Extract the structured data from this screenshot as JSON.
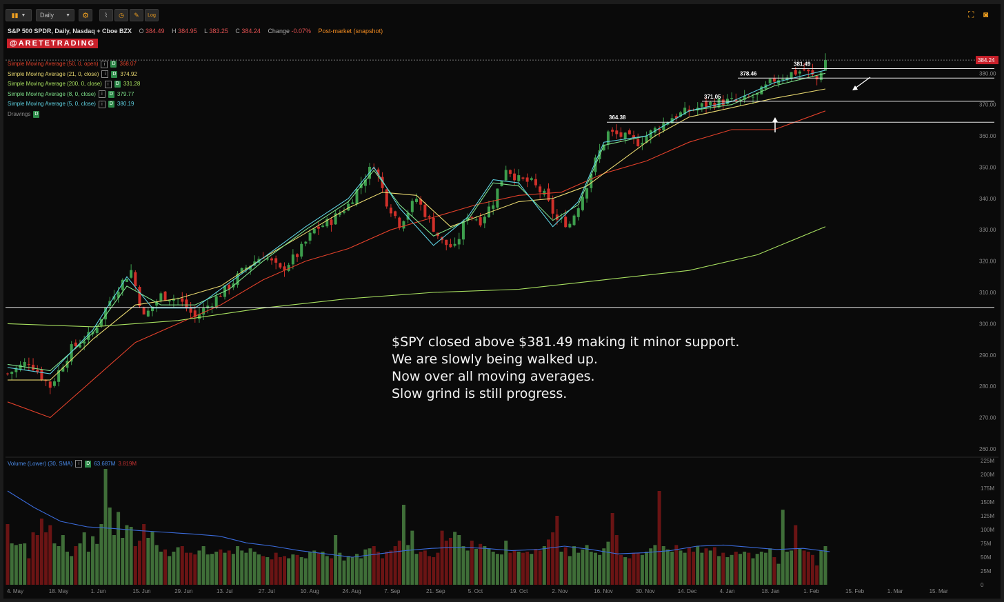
{
  "toolbar": {
    "chart_style_icon": "candlestick-icon",
    "interval_value": "Daily",
    "buttons": [
      "gear-icon",
      "compare-icon",
      "clock-icon",
      "drawing-icon",
      "log-scale-icon"
    ],
    "log_label": "Log",
    "right_icons": [
      "expand-icon",
      "camera-icon"
    ]
  },
  "header": {
    "symbol": "S&P 500 SPDR, Daily, Nasdaq + Cboe BZX",
    "open_label": "O",
    "open_value": "384.49",
    "high_label": "H",
    "high_value": "384.95",
    "low_label": "L",
    "low_value": "383.25",
    "close_label": "C",
    "close_value": "384.24",
    "change_label": "Change",
    "change_value": "-0.07%",
    "postmarket": "Post-market (snapshot)"
  },
  "brand": "@ARETETRADING",
  "studies": [
    {
      "label": "Simple Moving Average (50, 0, open)",
      "value": "368.07",
      "color": "#e0402a"
    },
    {
      "label": "Simple Moving Average (21, 0, close)",
      "value": "374.92",
      "color": "#e8d870"
    },
    {
      "label": "Simple Moving Average (200, 0, close)",
      "value": "331.28",
      "color": "#a8e060"
    },
    {
      "label": "Simple Moving Average (8, 0, close)",
      "value": "379.77",
      "color": "#7ee08a"
    },
    {
      "label": "Simple Moving Average (5, 0, close)",
      "value": "380.19",
      "color": "#5ed0e0"
    },
    {
      "label": "Drawings",
      "value": "",
      "color": "#888888"
    }
  ],
  "annotation_lines": [
    "$SPY closed above $381.49 making it minor support.",
    "We are slowly being walked up.",
    "Now over all moving averages.",
    "Slow grind is still progress."
  ],
  "level_labels": [
    "381.49",
    "378.46",
    "371.05",
    "364.38"
  ],
  "last_price_tag": "384.24",
  "volume_header": {
    "label": "Volume (Lower) (30, SMA)",
    "value1": "63.687M",
    "value2": "3.819M"
  },
  "chart_data": [
    {
      "type": "candlestick",
      "title": "S&P 500 SPDR, Daily, Nasdaq + Cboe BZX",
      "y_ticks": [
        "380.00",
        "370.00",
        "360.00",
        "350.00",
        "340.00",
        "330.00",
        "320.00",
        "310.00",
        "300.00",
        "290.00",
        "280.00",
        "270.00",
        "260.00"
      ],
      "ylim": [
        258,
        388
      ],
      "x_ticks": [
        "4. May",
        "18. May",
        "1. Jun",
        "15. Jun",
        "29. Jun",
        "13. Jul",
        "27. Jul",
        "10. Aug",
        "24. Aug",
        "7. Sep",
        "21. Sep",
        "5. Oct",
        "19. Oct",
        "2. Nov",
        "16. Nov",
        "30. Nov",
        "14. Dec",
        "4. Jan",
        "18. Jan",
        "1. Feb",
        "15. Feb",
        "1. Mar",
        "15. Mar"
      ],
      "close_path": [
        [
          0,
          284
        ],
        [
          5,
          288
        ],
        [
          10,
          280
        ],
        [
          15,
          292
        ],
        [
          20,
          297
        ],
        [
          25,
          310
        ],
        [
          29,
          317
        ],
        [
          32,
          302
        ],
        [
          36,
          309
        ],
        [
          40,
          308
        ],
        [
          44,
          302
        ],
        [
          48,
          307
        ],
        [
          52,
          312
        ],
        [
          56,
          318
        ],
        [
          60,
          322
        ],
        [
          64,
          317
        ],
        [
          68,
          322
        ],
        [
          72,
          330
        ],
        [
          76,
          333
        ],
        [
          80,
          338
        ],
        [
          83,
          345
        ],
        [
          86,
          351
        ],
        [
          89,
          339
        ],
        [
          92,
          332
        ],
        [
          96,
          340
        ],
        [
          99,
          333
        ],
        [
          102,
          326
        ],
        [
          105,
          324
        ],
        [
          108,
          335
        ],
        [
          111,
          333
        ],
        [
          114,
          339
        ],
        [
          117,
          350
        ],
        [
          120,
          346
        ],
        [
          123,
          345
        ],
        [
          126,
          341
        ],
        [
          129,
          333
        ],
        [
          132,
          332
        ],
        [
          135,
          341
        ],
        [
          138,
          352
        ],
        [
          141,
          361
        ],
        [
          144,
          360
        ],
        [
          148,
          358
        ],
        [
          152,
          362
        ],
        [
          156,
          366
        ],
        [
          160,
          368
        ],
        [
          164,
          370
        ],
        [
          168,
          371
        ],
        [
          172,
          371
        ],
        [
          176,
          373
        ],
        [
          180,
          378
        ],
        [
          184,
          380
        ],
        [
          187,
          381
        ],
        [
          190,
          378
        ],
        [
          192,
          384.24
        ]
      ],
      "sma_50": [
        [
          0,
          275
        ],
        [
          10,
          270
        ],
        [
          20,
          282
        ],
        [
          30,
          294
        ],
        [
          40,
          300
        ],
        [
          50,
          306
        ],
        [
          60,
          314
        ],
        [
          70,
          320
        ],
        [
          80,
          324
        ],
        [
          90,
          330
        ],
        [
          100,
          334
        ],
        [
          110,
          338
        ],
        [
          120,
          341
        ],
        [
          130,
          342
        ],
        [
          140,
          348
        ],
        [
          150,
          352
        ],
        [
          160,
          358
        ],
        [
          170,
          362
        ],
        [
          180,
          362
        ],
        [
          192,
          368
        ]
      ],
      "sma_21": [
        [
          0,
          282
        ],
        [
          10,
          282
        ],
        [
          20,
          295
        ],
        [
          30,
          306
        ],
        [
          40,
          308
        ],
        [
          50,
          312
        ],
        [
          60,
          321
        ],
        [
          70,
          329
        ],
        [
          80,
          337
        ],
        [
          88,
          342
        ],
        [
          96,
          341
        ],
        [
          104,
          331
        ],
        [
          112,
          335
        ],
        [
          120,
          339
        ],
        [
          128,
          340
        ],
        [
          136,
          344
        ],
        [
          144,
          352
        ],
        [
          152,
          360
        ],
        [
          160,
          366
        ],
        [
          170,
          369
        ],
        [
          180,
          372
        ],
        [
          192,
          375
        ]
      ],
      "sma_200": [
        [
          0,
          300
        ],
        [
          20,
          299
        ],
        [
          40,
          301
        ],
        [
          60,
          305
        ],
        [
          80,
          308
        ],
        [
          100,
          310
        ],
        [
          120,
          311
        ],
        [
          140,
          314
        ],
        [
          160,
          317
        ],
        [
          176,
          322
        ],
        [
          192,
          331
        ]
      ],
      "sma_8": [
        [
          0,
          287
        ],
        [
          10,
          285
        ],
        [
          20,
          297
        ],
        [
          28,
          312
        ],
        [
          36,
          306
        ],
        [
          44,
          306
        ],
        [
          52,
          311
        ],
        [
          60,
          320
        ],
        [
          70,
          330
        ],
        [
          80,
          339
        ],
        [
          86,
          349
        ],
        [
          92,
          338
        ],
        [
          100,
          328
        ],
        [
          108,
          333
        ],
        [
          114,
          345
        ],
        [
          120,
          344
        ],
        [
          128,
          333
        ],
        [
          134,
          338
        ],
        [
          140,
          357
        ],
        [
          150,
          360
        ],
        [
          160,
          368
        ],
        [
          170,
          370
        ],
        [
          180,
          376
        ],
        [
          192,
          380
        ]
      ],
      "sma_5": [
        [
          0,
          286
        ],
        [
          10,
          284
        ],
        [
          20,
          298
        ],
        [
          28,
          315
        ],
        [
          34,
          305
        ],
        [
          44,
          305
        ],
        [
          52,
          313
        ],
        [
          60,
          321
        ],
        [
          70,
          331
        ],
        [
          80,
          340
        ],
        [
          86,
          350
        ],
        [
          92,
          337
        ],
        [
          100,
          325
        ],
        [
          108,
          334
        ],
        [
          114,
          346
        ],
        [
          120,
          345
        ],
        [
          128,
          331
        ],
        [
          134,
          339
        ],
        [
          140,
          358
        ],
        [
          150,
          360
        ],
        [
          160,
          368
        ],
        [
          170,
          371
        ],
        [
          180,
          377
        ],
        [
          192,
          381
        ]
      ],
      "horizontal_levels": [
        381.49,
        378.46,
        371.05,
        364.38,
        305.2
      ],
      "last_price": 384.24
    },
    {
      "type": "bar",
      "title": "Volume (Lower) (30, SMA)",
      "y_ticks": [
        "225M",
        "200M",
        "175M",
        "150M",
        "125M",
        "100M",
        "75M",
        "50M",
        "25M",
        "0"
      ],
      "ylim": [
        0,
        225
      ],
      "values": [
        110,
        75,
        72,
        74,
        75,
        48,
        95,
        90,
        120,
        95,
        108,
        75,
        70,
        90,
        60,
        52,
        70,
        75,
        95,
        60,
        88,
        74,
        110,
        210,
        140,
        90,
        132,
        85,
        108,
        105,
        70,
        80,
        110,
        85,
        96,
        72,
        60,
        64,
        52,
        60,
        68,
        70,
        58,
        58,
        55,
        62,
        70,
        55,
        56,
        60,
        64,
        58,
        62,
        56,
        70,
        62,
        58,
        66,
        60,
        55,
        52,
        50,
        46,
        58,
        50,
        52,
        48,
        55,
        54,
        50,
        48,
        60,
        62,
        58,
        60,
        52,
        48,
        90,
        58,
        44,
        52,
        50,
        56,
        48,
        64,
        66,
        70,
        60,
        48,
        60,
        62,
        70,
        80,
        145,
        72,
        98,
        56,
        60,
        62,
        52,
        50,
        58,
        98,
        80,
        85,
        96,
        90,
        70,
        62,
        80,
        65,
        74,
        70,
        66,
        60,
        56,
        55,
        80,
        58,
        62,
        60,
        58,
        60,
        56,
        65,
        62,
        70,
        82,
        95,
        125,
        60,
        68,
        52,
        70,
        58,
        64,
        72,
        60,
        58,
        54,
        66,
        78,
        130,
        90,
        54,
        50,
        48,
        58,
        58,
        54,
        60,
        66,
        72,
        170,
        70,
        64,
        60,
        72,
        62,
        58,
        68,
        60,
        70,
        58,
        66,
        62,
        68,
        52,
        58,
        50,
        54,
        60,
        56,
        60,
        58,
        48,
        56,
        60,
        58,
        66,
        50,
        38,
        136,
        60,
        62,
        108,
        65,
        62,
        60,
        54,
        35,
        62,
        70,
        58,
        52,
        48,
        62,
        106,
        60
      ],
      "series_sma": [
        [
          0,
          170
        ],
        [
          10,
          140
        ],
        [
          20,
          115
        ],
        [
          30,
          105
        ],
        [
          40,
          102
        ],
        [
          50,
          98
        ],
        [
          60,
          95
        ],
        [
          70,
          92
        ],
        [
          80,
          88
        ],
        [
          90,
          76
        ],
        [
          100,
          70
        ],
        [
          110,
          62
        ],
        [
          120,
          56
        ],
        [
          130,
          50
        ],
        [
          140,
          56
        ],
        [
          150,
          62
        ],
        [
          160,
          66
        ],
        [
          170,
          68
        ],
        [
          180,
          66
        ],
        [
          190,
          62
        ],
        [
          200,
          64
        ],
        [
          210,
          70
        ],
        [
          220,
          64
        ],
        [
          230,
          56
        ],
        [
          240,
          58
        ],
        [
          250,
          62
        ],
        [
          260,
          70
        ],
        [
          270,
          72
        ],
        [
          280,
          68
        ],
        [
          290,
          64
        ],
        [
          300,
          66
        ],
        [
          310,
          60
        ]
      ]
    }
  ]
}
